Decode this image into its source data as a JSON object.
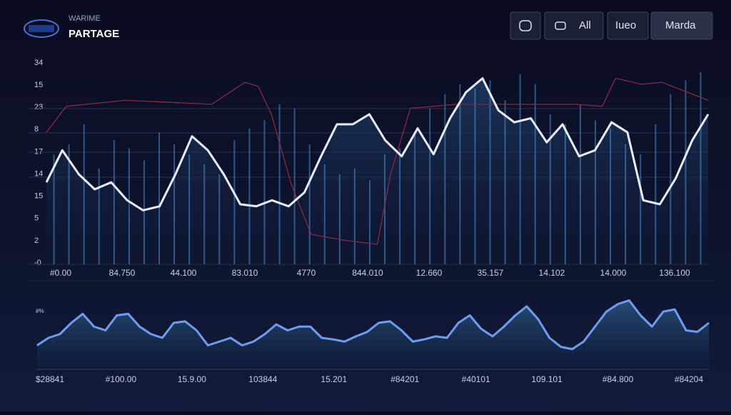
{
  "header": {
    "subtitle": "WARIME",
    "title": "PARTAGE"
  },
  "toolbar": {
    "buttons": [
      "All",
      "Iueo",
      "Marda"
    ]
  },
  "chart_data": [
    {
      "type": "line",
      "xlim": [
        0,
        100
      ],
      "ylim": [
        0,
        100
      ],
      "y_labels": [
        "34",
        "15",
        "23",
        "8",
        "17",
        "14",
        "15",
        "5",
        "2",
        "-0"
      ],
      "x_labels": [
        "#0.00",
        "84.750",
        "44.100",
        "83.010",
        "4770",
        "844.010",
        "12.660",
        "35.157",
        "14.102",
        "14.000",
        "136.100"
      ],
      "series": [
        {
          "color": "#e8ecff",
          "x": [
            0,
            2.4,
            4.9,
            7.3,
            9.8,
            12.2,
            14.6,
            17.1,
            19.5,
            22,
            24.4,
            26.8,
            29.3,
            31.7,
            34.1,
            36.6,
            39,
            41.5,
            43.9,
            46.3,
            48.8,
            51.2,
            53.7,
            56.1,
            58.5,
            61,
            63.4,
            65.9,
            68.3,
            70.7,
            73.2,
            75.6,
            78,
            80.5,
            82.9,
            85.4,
            87.8,
            90.2,
            92.7,
            95.1,
            97.6,
            100
          ],
          "values": [
            41,
            57,
            45,
            37.5,
            41,
            32,
            27,
            29,
            45,
            64,
            57,
            45,
            30,
            29,
            32,
            29,
            36,
            54,
            70,
            70,
            75,
            62,
            54,
            68,
            55,
            73,
            86,
            93,
            77,
            71,
            73,
            61,
            70,
            54,
            57,
            71,
            66,
            32,
            30,
            43,
            62,
            75
          ]
        },
        {
          "color": "#8a2746",
          "x": [
            0,
            3,
            12,
            25,
            30,
            32,
            34,
            37,
            40,
            45,
            50,
            52,
            55,
            62,
            75,
            80,
            84,
            86,
            90,
            93,
            100
          ],
          "values": [
            66,
            79,
            82,
            80,
            91,
            89,
            75,
            40,
            15,
            12,
            10,
            45,
            78,
            80,
            80,
            80,
            79,
            93,
            90,
            91,
            82
          ]
        },
        {
          "type": "bar",
          "color": "#4d8fd6",
          "values": [
            55,
            60,
            70,
            48,
            62,
            58,
            52,
            66,
            60,
            55,
            50,
            45,
            62,
            68,
            72,
            80,
            78,
            60,
            50,
            45,
            48,
            42,
            55,
            58,
            66,
            78,
            85,
            90,
            88,
            92,
            82,
            95,
            90,
            75,
            70,
            80,
            72,
            68,
            60,
            55,
            70,
            85,
            92,
            96
          ]
        }
      ]
    },
    {
      "type": "area",
      "xlim": [
        0,
        100
      ],
      "ylim": [
        0,
        100
      ],
      "y_label": "#%",
      "x_labels": [
        "$28841",
        "#100.00",
        "15.9.00",
        "103844",
        "15.201",
        "#84201",
        "#40101",
        "109.101",
        "#84.800",
        "#84204"
      ],
      "series": [
        {
          "color": "#6f9cf0",
          "values": [
            30,
            40,
            45,
            60,
            72,
            55,
            50,
            70,
            72,
            55,
            45,
            40,
            60,
            62,
            50,
            30,
            35,
            40,
            30,
            35,
            45,
            58,
            50,
            55,
            55,
            40,
            38,
            35,
            42,
            48,
            60,
            62,
            50,
            35,
            38,
            42,
            40,
            60,
            70,
            52,
            42,
            55,
            70,
            82,
            65,
            40,
            28,
            25,
            35,
            55,
            75,
            85,
            90,
            70,
            55,
            75,
            78,
            50,
            48,
            60
          ]
        }
      ]
    }
  ]
}
